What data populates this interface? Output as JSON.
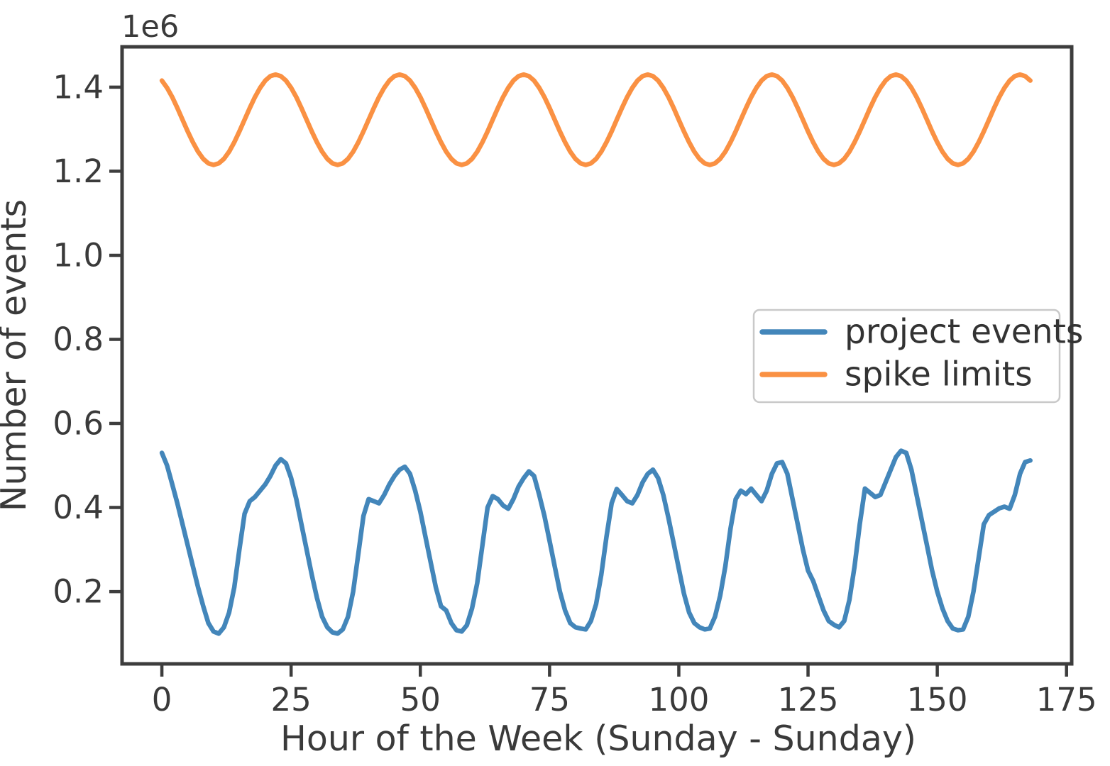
{
  "figure": {
    "background_color": "#ffffff",
    "text_color": "#3a3a3a"
  },
  "chart_data": {
    "type": "line",
    "title": "",
    "xlabel": "Hour of the Week (Sunday - Sunday)",
    "ylabel": "Number of events",
    "offset_text": "1e6",
    "y_unit_multiplier": 1000000,
    "grid": false,
    "legend": {
      "position": "center right",
      "entries": [
        "project events",
        "spike limits"
      ]
    },
    "xlim": [
      -7.7,
      176.0
    ],
    "ylim_e6": [
      0.028,
      1.496
    ],
    "xticks": [
      0,
      25,
      50,
      75,
      100,
      125,
      150,
      175
    ],
    "yticks_e6": [
      0.2,
      0.4,
      0.6,
      0.8,
      1.0,
      1.2,
      1.4
    ],
    "x_start": 0,
    "x_step": 1,
    "x_end": 168,
    "series": [
      {
        "name": "project events",
        "color": "#4386ba",
        "values_e6": [
          0.53,
          0.5,
          0.455,
          0.41,
          0.36,
          0.31,
          0.26,
          0.21,
          0.165,
          0.125,
          0.105,
          0.1,
          0.115,
          0.15,
          0.21,
          0.3,
          0.385,
          0.415,
          0.425,
          0.44,
          0.455,
          0.475,
          0.5,
          0.515,
          0.505,
          0.47,
          0.42,
          0.36,
          0.3,
          0.24,
          0.185,
          0.14,
          0.115,
          0.103,
          0.1,
          0.11,
          0.14,
          0.2,
          0.29,
          0.38,
          0.42,
          0.415,
          0.41,
          0.43,
          0.455,
          0.475,
          0.49,
          0.497,
          0.48,
          0.44,
          0.39,
          0.33,
          0.27,
          0.21,
          0.165,
          0.155,
          0.125,
          0.108,
          0.105,
          0.12,
          0.16,
          0.22,
          0.31,
          0.4,
          0.427,
          0.42,
          0.405,
          0.397,
          0.42,
          0.45,
          0.47,
          0.486,
          0.475,
          0.43,
          0.38,
          0.32,
          0.26,
          0.2,
          0.155,
          0.125,
          0.115,
          0.112,
          0.11,
          0.13,
          0.17,
          0.24,
          0.33,
          0.41,
          0.444,
          0.43,
          0.415,
          0.41,
          0.43,
          0.46,
          0.48,
          0.49,
          0.47,
          0.43,
          0.375,
          0.315,
          0.255,
          0.195,
          0.15,
          0.125,
          0.115,
          0.11,
          0.112,
          0.14,
          0.19,
          0.26,
          0.35,
          0.42,
          0.44,
          0.432,
          0.445,
          0.43,
          0.415,
          0.44,
          0.48,
          0.505,
          0.508,
          0.48,
          0.42,
          0.36,
          0.3,
          0.25,
          0.225,
          0.19,
          0.155,
          0.13,
          0.121,
          0.115,
          0.13,
          0.18,
          0.26,
          0.36,
          0.445,
          0.435,
          0.425,
          0.43,
          0.46,
          0.49,
          0.52,
          0.535,
          0.53,
          0.49,
          0.43,
          0.37,
          0.31,
          0.25,
          0.2,
          0.16,
          0.13,
          0.112,
          0.108,
          0.11,
          0.14,
          0.2,
          0.28,
          0.36,
          0.382,
          0.39,
          0.398,
          0.402,
          0.397,
          0.43,
          0.48,
          0.508,
          0.512
        ]
      },
      {
        "name": "spike limits",
        "color": "#fa9143",
        "values_e6": [
          1.4156,
          1.3985,
          1.3763,
          1.3503,
          1.3225,
          1.2947,
          1.2688,
          1.2465,
          1.2294,
          1.2187,
          1.215,
          1.2187,
          1.2294,
          1.2465,
          1.2688,
          1.2947,
          1.3225,
          1.3503,
          1.3763,
          1.3985,
          1.4156,
          1.4263,
          1.43,
          1.4263,
          1.4156,
          1.3985,
          1.3763,
          1.3503,
          1.3225,
          1.2947,
          1.2688,
          1.2465,
          1.2294,
          1.2187,
          1.215,
          1.2187,
          1.2294,
          1.2465,
          1.2688,
          1.2947,
          1.3225,
          1.3503,
          1.3763,
          1.3985,
          1.4156,
          1.4263,
          1.43,
          1.4263,
          1.4156,
          1.3985,
          1.3763,
          1.3503,
          1.3225,
          1.2947,
          1.2688,
          1.2465,
          1.2294,
          1.2187,
          1.215,
          1.2187,
          1.2294,
          1.2465,
          1.2688,
          1.2947,
          1.3225,
          1.3503,
          1.3763,
          1.3985,
          1.4156,
          1.4263,
          1.43,
          1.4263,
          1.4156,
          1.3985,
          1.3763,
          1.3503,
          1.3225,
          1.2947,
          1.2688,
          1.2465,
          1.2294,
          1.2187,
          1.215,
          1.2187,
          1.2294,
          1.2465,
          1.2688,
          1.2947,
          1.3225,
          1.3503,
          1.3763,
          1.3985,
          1.4156,
          1.4263,
          1.43,
          1.4263,
          1.4156,
          1.3985,
          1.3763,
          1.3503,
          1.3225,
          1.2947,
          1.2688,
          1.2465,
          1.2294,
          1.2187,
          1.215,
          1.2187,
          1.2294,
          1.2465,
          1.2688,
          1.2947,
          1.3225,
          1.3503,
          1.3763,
          1.3985,
          1.4156,
          1.4263,
          1.43,
          1.4263,
          1.4156,
          1.3985,
          1.3763,
          1.3503,
          1.3225,
          1.2947,
          1.2688,
          1.2465,
          1.2294,
          1.2187,
          1.215,
          1.2187,
          1.2294,
          1.2465,
          1.2688,
          1.2947,
          1.3225,
          1.3503,
          1.3763,
          1.3985,
          1.4156,
          1.4263,
          1.43,
          1.4263,
          1.4156,
          1.3985,
          1.3763,
          1.3503,
          1.3225,
          1.2947,
          1.2688,
          1.2465,
          1.2294,
          1.2187,
          1.215,
          1.2187,
          1.2294,
          1.2465,
          1.2688,
          1.2947,
          1.3225,
          1.3503,
          1.3763,
          1.3985,
          1.4156,
          1.4263,
          1.43,
          1.4263,
          1.4156
        ]
      }
    ]
  }
}
